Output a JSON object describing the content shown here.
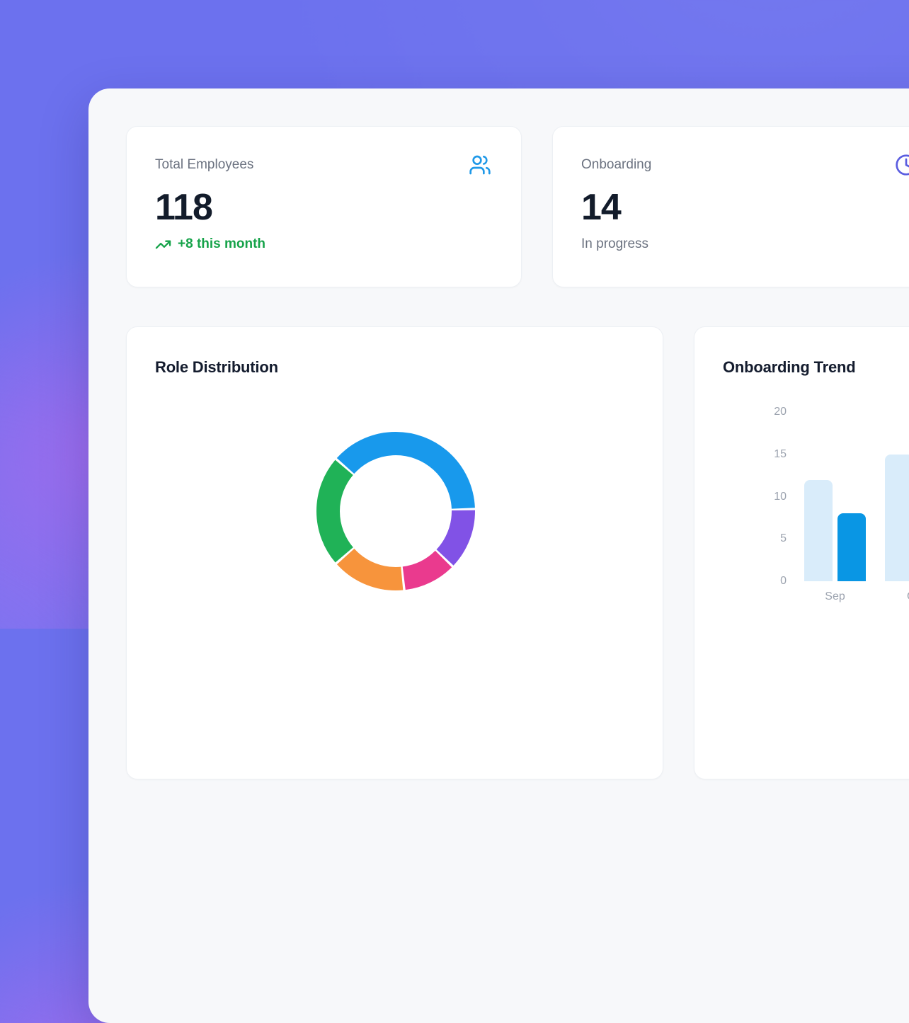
{
  "stats": [
    {
      "label": "Total Employees",
      "value": "118",
      "sub": "+8 this month",
      "sub_color": "#16a34a",
      "icon": "users-icon",
      "icon_color": "#1f99e8"
    },
    {
      "label": "Onboarding",
      "value": "14",
      "sub": "In progress",
      "sub_color": "#6b7280",
      "icon": "clock-icon",
      "icon_color": "#5b5de0"
    }
  ],
  "cards": {
    "role_distribution": {
      "title": "Role Distribution"
    },
    "onboarding_trend": {
      "title": "Onboarding Trend"
    }
  },
  "chart_data": [
    {
      "type": "donut",
      "title": "Role Distribution",
      "legend_visible": false,
      "start_angle_deg": -48,
      "total": 118,
      "segments": [
        {
          "label": "blue",
          "value": 45,
          "color": "#1899ec"
        },
        {
          "label": "purple",
          "value": 15,
          "color": "#8152e6"
        },
        {
          "label": "pink",
          "value": 13,
          "color": "#ea3a8e"
        },
        {
          "label": "orange",
          "value": 18,
          "color": "#f7943c"
        },
        {
          "label": "green",
          "value": 27,
          "color": "#20b257"
        }
      ]
    },
    {
      "type": "bar",
      "title": "Onboarding Trend",
      "categories": [
        "Sep",
        "Oct"
      ],
      "series": [
        {
          "name": "series-1",
          "color": "#d9ecfa",
          "values": [
            12,
            15
          ]
        },
        {
          "name": "series-2",
          "color": "#0996e4",
          "values": [
            8,
            null
          ]
        }
      ],
      "ylim": [
        0,
        20
      ],
      "yticks": [
        0,
        5,
        10,
        15,
        20
      ],
      "grid": false,
      "legend_visible": false
    }
  ],
  "colors": {
    "background": "#6c71ee",
    "panel": "#f7f8fa",
    "card": "#ffffff",
    "heading": "#141c2e",
    "stat_value": "#131c2b",
    "label_gray": "#6b7280",
    "tick_gray": "#9ca3af",
    "positive_green": "#16a34a"
  }
}
